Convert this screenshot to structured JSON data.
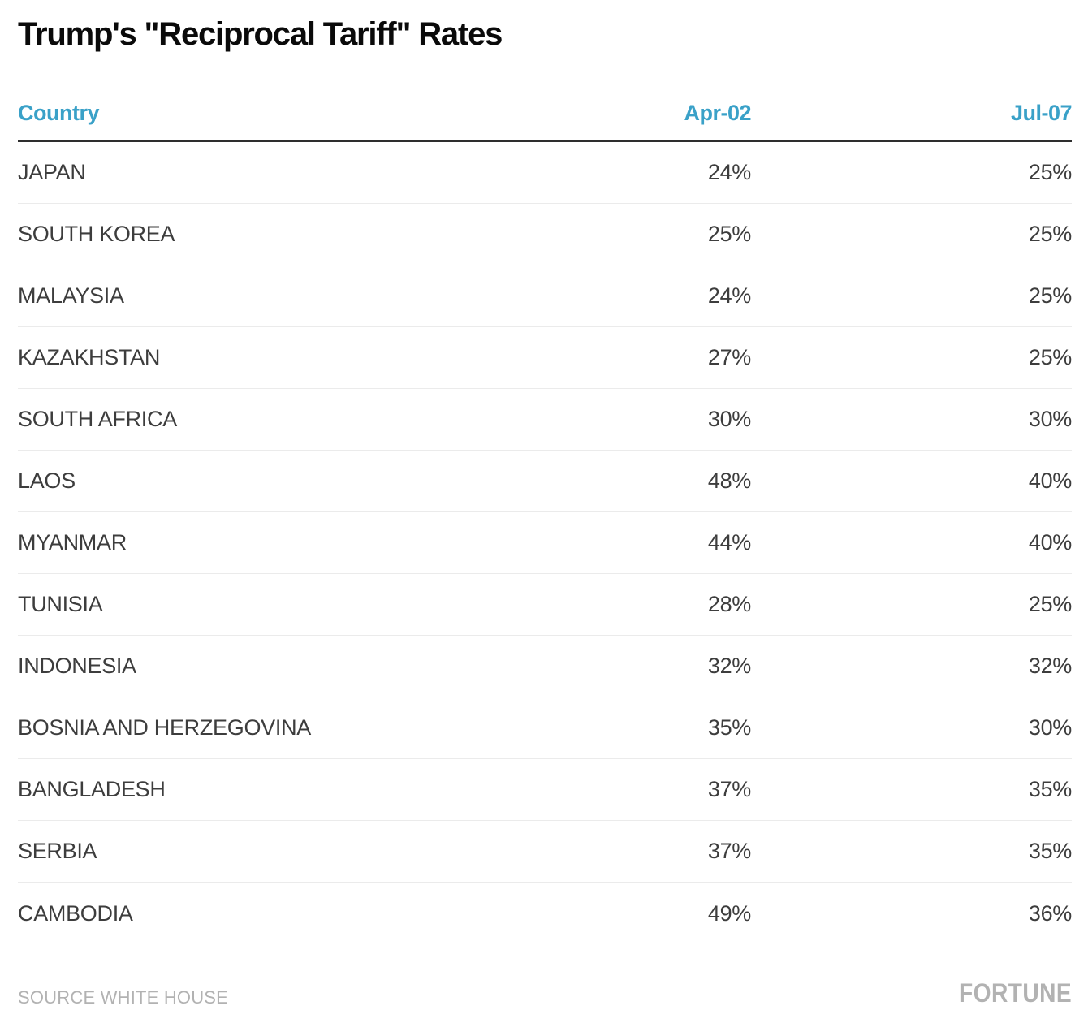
{
  "title": "Trump's \"Reciprocal Tariff\" Rates",
  "colors": {
    "accent_blue": "#3AA1C8",
    "body_text": "#3D3D3D",
    "title_text": "#0A0A0A",
    "header_rule": "#2E2E2E",
    "row_divider": "#EBEBEB",
    "footer_gray": "#B2B2B2"
  },
  "table": {
    "columns": [
      "Country",
      "Apr-02",
      "Jul-07"
    ],
    "rows": [
      {
        "country": "JAPAN",
        "apr02": "24%",
        "jul07": "25%"
      },
      {
        "country": "SOUTH KOREA",
        "apr02": "25%",
        "jul07": "25%"
      },
      {
        "country": "MALAYSIA",
        "apr02": "24%",
        "jul07": "25%"
      },
      {
        "country": "KAZAKHSTAN",
        "apr02": "27%",
        "jul07": "25%"
      },
      {
        "country": "SOUTH AFRICA",
        "apr02": "30%",
        "jul07": "30%"
      },
      {
        "country": "LAOS",
        "apr02": "48%",
        "jul07": "40%"
      },
      {
        "country": "MYANMAR",
        "apr02": "44%",
        "jul07": "40%"
      },
      {
        "country": "TUNISIA",
        "apr02": "28%",
        "jul07": "25%"
      },
      {
        "country": "INDONESIA",
        "apr02": "32%",
        "jul07": "32%"
      },
      {
        "country": "BOSNIA AND HERZEGOVINA",
        "apr02": "35%",
        "jul07": "30%"
      },
      {
        "country": "BANGLADESH",
        "apr02": "37%",
        "jul07": "35%"
      },
      {
        "country": "SERBIA",
        "apr02": "37%",
        "jul07": "35%"
      },
      {
        "country": "CAMBODIA",
        "apr02": "49%",
        "jul07": "36%"
      }
    ]
  },
  "footer": {
    "source": "SOURCE WHITE HOUSE",
    "brand": "FORTUNE"
  },
  "chart_data": {
    "type": "table",
    "title": "Trump's \"Reciprocal Tariff\" Rates",
    "columns": [
      "Country",
      "Apr-02",
      "Jul-07"
    ],
    "rows": [
      [
        "JAPAN",
        "24%",
        "25%"
      ],
      [
        "SOUTH KOREA",
        "25%",
        "25%"
      ],
      [
        "MALAYSIA",
        "24%",
        "25%"
      ],
      [
        "KAZAKHSTAN",
        "27%",
        "25%"
      ],
      [
        "SOUTH AFRICA",
        "30%",
        "30%"
      ],
      [
        "LAOS",
        "48%",
        "40%"
      ],
      [
        "MYANMAR",
        "44%",
        "40%"
      ],
      [
        "TUNISIA",
        "28%",
        "25%"
      ],
      [
        "INDONESIA",
        "32%",
        "32%"
      ],
      [
        "BOSNIA AND HERZEGOVINA",
        "35%",
        "30%"
      ],
      [
        "BANGLADESH",
        "37%",
        "35%"
      ],
      [
        "SERBIA",
        "37%",
        "35%"
      ],
      [
        "CAMBODIA",
        "49%",
        "36%"
      ]
    ],
    "source": "SOURCE WHITE HOUSE"
  }
}
